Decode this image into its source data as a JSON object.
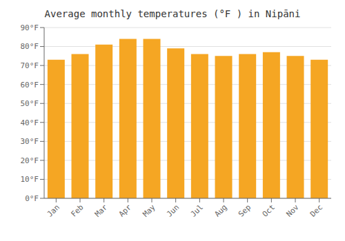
{
  "chart_data": {
    "type": "bar",
    "title": "Average monthly temperatures (°F ) in Nipāni",
    "categories": [
      "Jan",
      "Feb",
      "Mar",
      "Apr",
      "May",
      "Jun",
      "Jul",
      "Aug",
      "Sep",
      "Oct",
      "Nov",
      "Dec"
    ],
    "values": [
      73,
      76,
      81,
      84,
      84,
      79,
      76,
      75,
      76,
      77,
      75,
      73
    ],
    "color": "#F5A623",
    "ylim": [
      0,
      90
    ],
    "yticks": [
      {
        "value": 0,
        "label": "0°F"
      },
      {
        "value": 10,
        "label": "10°F"
      },
      {
        "value": 20,
        "label": "20°F"
      },
      {
        "value": 30,
        "label": "30°F"
      },
      {
        "value": 40,
        "label": "40°F"
      },
      {
        "value": 50,
        "label": "50°F"
      },
      {
        "value": 60,
        "label": "60°F"
      },
      {
        "value": 70,
        "label": "70°F"
      },
      {
        "value": 80,
        "label": "80°F"
      },
      {
        "value": 90,
        "label": "90°F"
      }
    ],
    "grid": true
  }
}
